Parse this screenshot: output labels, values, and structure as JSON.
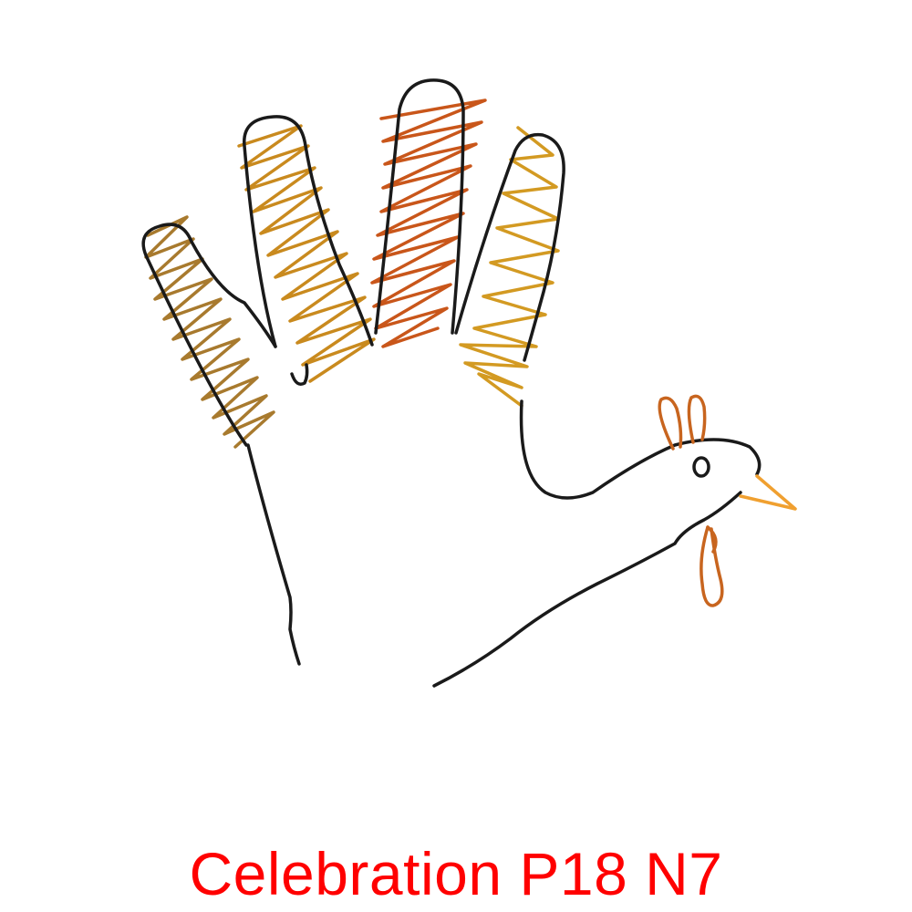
{
  "caption": "Celebration P18 N7",
  "illustration": {
    "subject": "hand-turkey-icon",
    "outline_color": "#1a1a1a",
    "feather_colors": [
      "#a87a2e",
      "#c98a1e",
      "#c9561a",
      "#d39a22"
    ],
    "beak_color": "#f0a030",
    "wattle_color": "#c8651f",
    "caption_color": "#ff0000"
  }
}
